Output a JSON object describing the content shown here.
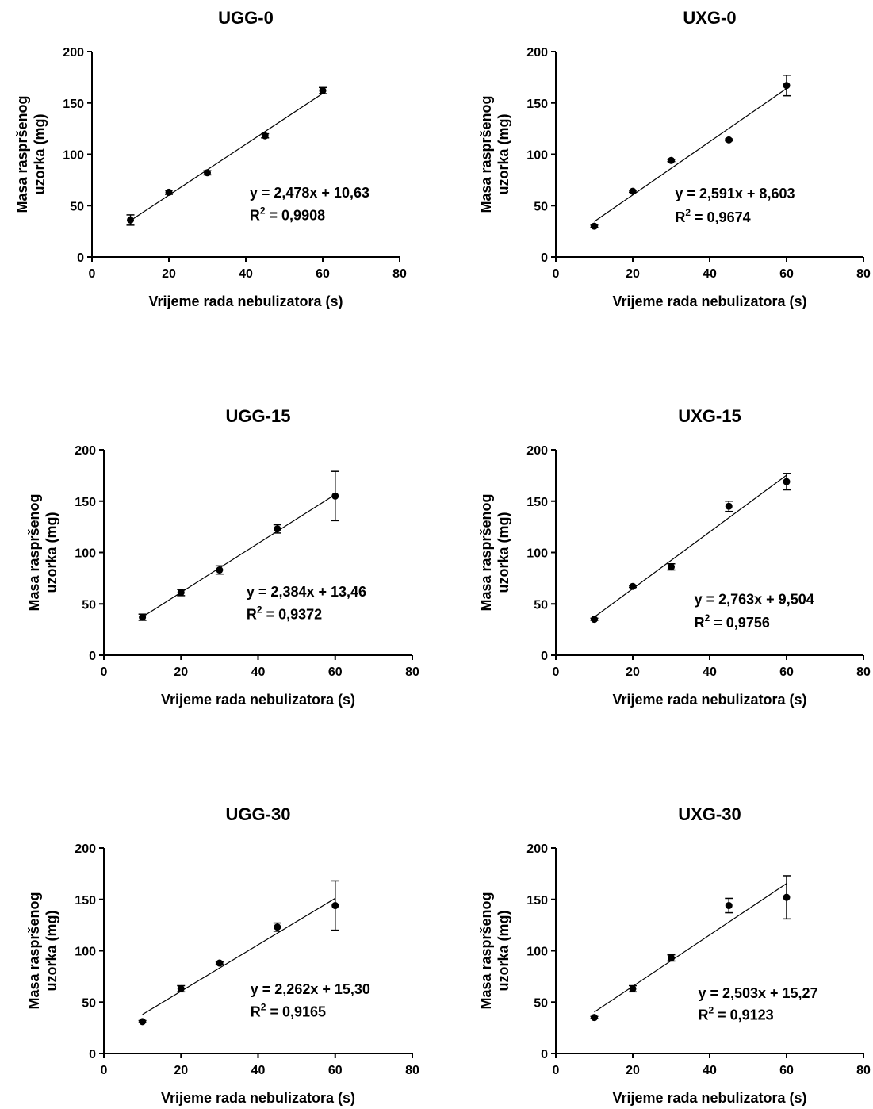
{
  "figure": {
    "shared_xlabel": "Vrijeme rada nebulizatora (s)",
    "shared_ylabel_line1": "Masa raspršenog",
    "shared_ylabel_line2": "uzorka (mg)"
  },
  "chart_data": [
    {
      "type": "scatter",
      "title": "UGG-0",
      "xlabel": "Vrijeme rada nebulizatora (s)",
      "ylabel": "Masa raspršenog uzorka (mg)",
      "xlim": [
        0,
        80
      ],
      "ylim": [
        0,
        200
      ],
      "xticks": [
        0,
        20,
        40,
        60,
        80
      ],
      "yticks": [
        0,
        50,
        100,
        150,
        200
      ],
      "x": [
        10,
        20,
        30,
        45,
        60
      ],
      "y": [
        36,
        63,
        82,
        118,
        162
      ],
      "y_err": [
        5,
        2,
        2,
        2,
        3
      ],
      "fit": {
        "slope": 2.478,
        "intercept": 10.63
      },
      "equation": "y = 2,478x + 10,63",
      "r2_label": "R",
      "r2_value": " = 0,9908"
    },
    {
      "type": "scatter",
      "title": "UXG-0",
      "xlabel": "Vrijeme rada nebulizatora (s)",
      "ylabel": "Masa raspršenog uzorka (mg)",
      "xlim": [
        0,
        80
      ],
      "ylim": [
        0,
        200
      ],
      "xticks": [
        0,
        20,
        40,
        60,
        80
      ],
      "yticks": [
        0,
        50,
        100,
        150,
        200
      ],
      "x": [
        10,
        20,
        30,
        45,
        60
      ],
      "y": [
        30,
        64,
        94,
        114,
        167
      ],
      "y_err": [
        1,
        1,
        1,
        1,
        10
      ],
      "fit": {
        "slope": 2.591,
        "intercept": 8.603
      },
      "equation": "y = 2,591x + 8,603",
      "r2_label": "R",
      "r2_value": " = 0,9674"
    },
    {
      "type": "scatter",
      "title": "UGG-15",
      "xlabel": "Vrijeme rada nebulizatora (s)",
      "ylabel": "Masa raspršenog uzorka (mg)",
      "xlim": [
        0,
        80
      ],
      "ylim": [
        0,
        200
      ],
      "xticks": [
        0,
        20,
        40,
        60,
        80
      ],
      "yticks": [
        0,
        50,
        100,
        150,
        200
      ],
      "x": [
        10,
        20,
        30,
        45,
        60
      ],
      "y": [
        37,
        61,
        83,
        123,
        155
      ],
      "y_err": [
        3,
        3,
        4,
        4,
        24
      ],
      "fit": {
        "slope": 2.384,
        "intercept": 13.46
      },
      "equation": "y = 2,384x + 13,46",
      "r2_label": "R",
      "r2_value": " = 0,9372"
    },
    {
      "type": "scatter",
      "title": "UXG-15",
      "xlabel": "Vrijeme rada nebulizatora (s)",
      "ylabel": "Masa raspršenog uzorka (mg)",
      "xlim": [
        0,
        80
      ],
      "ylim": [
        0,
        200
      ],
      "xticks": [
        0,
        20,
        40,
        60,
        80
      ],
      "yticks": [
        0,
        50,
        100,
        150,
        200
      ],
      "x": [
        10,
        20,
        30,
        45,
        60
      ],
      "y": [
        35,
        67,
        86,
        145,
        169
      ],
      "y_err": [
        1,
        1,
        3,
        5,
        8
      ],
      "fit": {
        "slope": 2.763,
        "intercept": 9.504
      },
      "equation": "y = 2,763x + 9,504",
      "r2_label": "R",
      "r2_value": " = 0,9756"
    },
    {
      "type": "scatter",
      "title": "UGG-30",
      "xlabel": "Vrijeme rada nebulizatora (s)",
      "ylabel": "Masa raspršenog uzorka (mg)",
      "xlim": [
        0,
        80
      ],
      "ylim": [
        0,
        200
      ],
      "xticks": [
        0,
        20,
        40,
        60,
        80
      ],
      "yticks": [
        0,
        50,
        100,
        150,
        200
      ],
      "x": [
        10,
        20,
        30,
        45,
        60
      ],
      "y": [
        31,
        63,
        88,
        123,
        144
      ],
      "y_err": [
        1,
        3,
        1,
        4,
        24
      ],
      "fit": {
        "slope": 2.262,
        "intercept": 15.3
      },
      "equation": "y = 2,262x + 15,30",
      "r2_label": "R",
      "r2_value": " = 0,9165"
    },
    {
      "type": "scatter",
      "title": "UXG-30",
      "xlabel": "Vrijeme rada nebulizatora (s)",
      "ylabel": "Masa raspršenog uzorka (mg)",
      "xlim": [
        0,
        80
      ],
      "ylim": [
        0,
        200
      ],
      "xticks": [
        0,
        20,
        40,
        60,
        80
      ],
      "yticks": [
        0,
        50,
        100,
        150,
        200
      ],
      "x": [
        10,
        20,
        30,
        45,
        60
      ],
      "y": [
        35,
        63,
        93,
        144,
        152
      ],
      "y_err": [
        1,
        3,
        3,
        7,
        21
      ],
      "fit": {
        "slope": 2.503,
        "intercept": 15.27
      },
      "equation": "y = 2,503x + 15,27",
      "r2_label": "R",
      "r2_value": " = 0,9123"
    }
  ]
}
